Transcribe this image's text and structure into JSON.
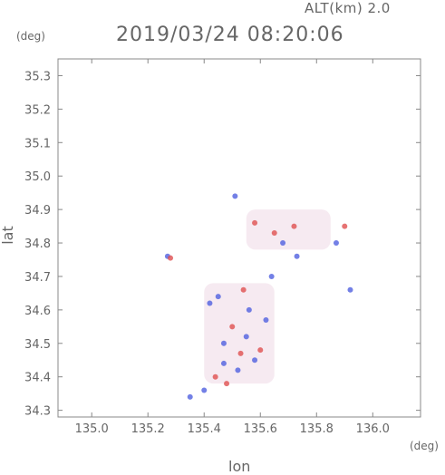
{
  "header": {
    "alt_label": "ALT(km) 2.0",
    "timestamp": "2019/03/24 08:20:06"
  },
  "axes_units": {
    "y_unit": "(deg)",
    "x_unit": "(deg)"
  },
  "chart_data": {
    "type": "heatmap",
    "title": "2019/03/24 08:20:06",
    "subtitle": "ALT(km) 2.0",
    "xlabel": "lon",
    "ylabel": "lat",
    "xlim": [
      134.88,
      136.17
    ],
    "ylim": [
      34.28,
      35.35
    ],
    "x_ticks": [
      135.0,
      135.2,
      135.4,
      135.6,
      135.8,
      136.0
    ],
    "x_tick_labels": [
      "135.0",
      "135.2",
      "135.4",
      "135.6",
      "135.8",
      "136.0"
    ],
    "y_ticks": [
      34.3,
      34.4,
      34.5,
      34.6,
      34.7,
      34.8,
      34.9,
      35.0,
      35.1,
      35.2,
      35.3
    ],
    "y_tick_labels": [
      "34.3",
      "34.4",
      "34.5",
      "34.6",
      "34.7",
      "34.8",
      "34.9",
      "35.0",
      "35.1",
      "35.2",
      "35.3"
    ],
    "grid": false,
    "colors": {
      "positive": "#e05050",
      "negative": "#5060e0",
      "neutral": "#f4e6ee",
      "axis": "#888888"
    },
    "regions": [
      {
        "name": "main",
        "lon": [
          135.4,
          135.65
        ],
        "lat": [
          34.38,
          34.68
        ]
      },
      {
        "name": "north",
        "lon": [
          135.55,
          135.85
        ],
        "lat": [
          34.78,
          34.9
        ]
      }
    ],
    "points": [
      {
        "lon": 135.35,
        "lat": 34.34,
        "v": -1
      },
      {
        "lon": 135.27,
        "lat": 34.76,
        "v": -1
      },
      {
        "lon": 135.28,
        "lat": 34.755,
        "v": 1
      },
      {
        "lon": 135.9,
        "lat": 34.85,
        "v": 1
      },
      {
        "lon": 135.92,
        "lat": 34.66,
        "v": -1
      },
      {
        "lon": 135.87,
        "lat": 34.8,
        "v": -1
      },
      {
        "lon": 135.51,
        "lat": 34.94,
        "v": -1
      },
      {
        "lon": 135.72,
        "lat": 34.85,
        "v": 1
      },
      {
        "lon": 135.65,
        "lat": 34.83,
        "v": 1
      },
      {
        "lon": 135.58,
        "lat": 34.86,
        "v": 1
      },
      {
        "lon": 135.68,
        "lat": 34.8,
        "v": -1
      },
      {
        "lon": 135.73,
        "lat": 34.76,
        "v": -1
      },
      {
        "lon": 135.45,
        "lat": 34.64,
        "v": -1
      },
      {
        "lon": 135.42,
        "lat": 34.62,
        "v": -1
      },
      {
        "lon": 135.5,
        "lat": 34.55,
        "v": 1
      },
      {
        "lon": 135.55,
        "lat": 34.52,
        "v": -1
      },
      {
        "lon": 135.6,
        "lat": 34.48,
        "v": 1
      },
      {
        "lon": 135.58,
        "lat": 34.45,
        "v": -1
      },
      {
        "lon": 135.47,
        "lat": 34.44,
        "v": -1
      },
      {
        "lon": 135.44,
        "lat": 34.4,
        "v": 1
      },
      {
        "lon": 135.52,
        "lat": 34.42,
        "v": -1
      },
      {
        "lon": 135.4,
        "lat": 34.36,
        "v": -1
      },
      {
        "lon": 135.48,
        "lat": 34.38,
        "v": 1
      },
      {
        "lon": 135.56,
        "lat": 34.6,
        "v": -1
      },
      {
        "lon": 135.62,
        "lat": 34.57,
        "v": -1
      },
      {
        "lon": 135.54,
        "lat": 34.66,
        "v": 1
      },
      {
        "lon": 135.64,
        "lat": 34.7,
        "v": -1
      },
      {
        "lon": 135.47,
        "lat": 34.5,
        "v": -1
      },
      {
        "lon": 135.53,
        "lat": 34.47,
        "v": 1
      }
    ]
  }
}
